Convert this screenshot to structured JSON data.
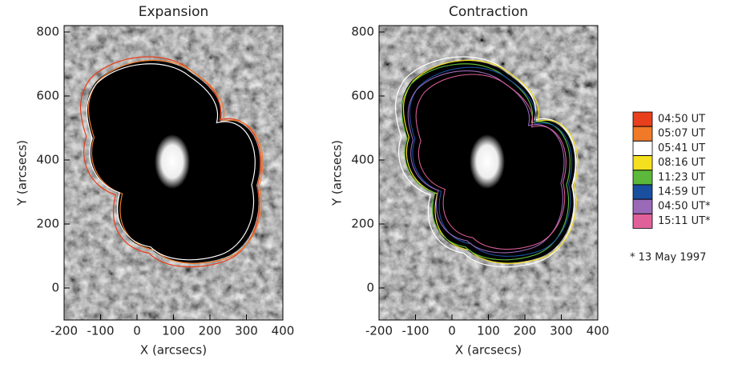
{
  "chart_data": [
    {
      "type": "image",
      "title": "Expansion",
      "xlabel": "X (arcsecs)",
      "ylabel": "Y (arcsecs)",
      "xlim": [
        -200,
        400
      ],
      "ylim": [
        -100,
        820
      ],
      "xticks": [
        -200,
        -100,
        0,
        100,
        200,
        300,
        400
      ],
      "yticks": [
        0,
        200,
        400,
        600,
        800
      ]
    },
    {
      "type": "image",
      "title": "Contraction",
      "xlabel": "X (arcsecs)",
      "ylabel": "Y (arcsecs)",
      "xlim": [
        -200,
        400
      ],
      "ylim": [
        -100,
        820
      ],
      "xticks": [
        -200,
        -100,
        0,
        100,
        200,
        300,
        400
      ],
      "yticks": [
        0,
        200,
        400,
        600,
        800
      ]
    }
  ],
  "legend": {
    "entries": [
      {
        "label": "04:50 UT",
        "color": "#e8401c"
      },
      {
        "label": "05:07 UT",
        "color": "#f07a28"
      },
      {
        "label": "05:41 UT",
        "color": "#ffffff"
      },
      {
        "label": "08:16 UT",
        "color": "#f5e020"
      },
      {
        "label": "11:23 UT",
        "color": "#5cb83a"
      },
      {
        "label": "14:59 UT",
        "color": "#1a4fa0"
      },
      {
        "label": "04:50 UT*",
        "color": "#9a6ab8"
      },
      {
        "label": "15:11 UT*",
        "color": "#e0609a"
      }
    ],
    "note": "* 13 May 1997"
  }
}
